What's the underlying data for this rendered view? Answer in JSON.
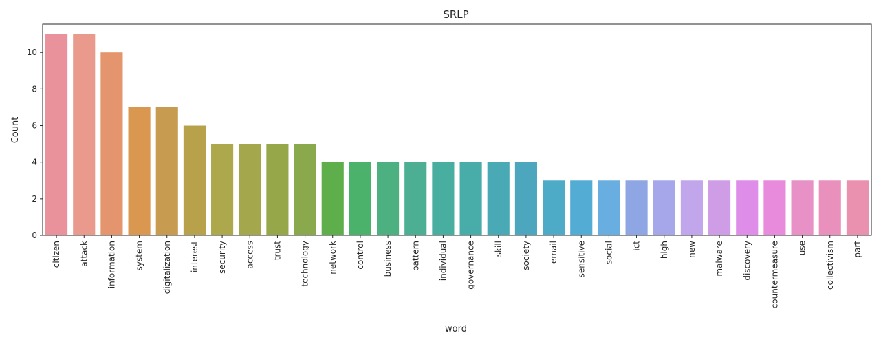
{
  "chart_data": {
    "type": "bar",
    "title": "SRLP",
    "xlabel": "word",
    "ylabel": "Count",
    "ylim": [
      0,
      11.55
    ],
    "yticks": [
      0,
      2,
      4,
      6,
      8,
      10
    ],
    "grid": false,
    "categories": [
      "citizen",
      "attack",
      "information",
      "system",
      "digitalization",
      "interest",
      "security",
      "access",
      "trust",
      "technology",
      "network",
      "control",
      "business",
      "pattern",
      "individual",
      "governance",
      "skill",
      "society",
      "email",
      "sensitive",
      "social",
      "ict",
      "high",
      "new",
      "malware",
      "discovery",
      "countermeasure",
      "use",
      "collectivism",
      "part"
    ],
    "values": [
      11,
      11,
      10,
      7,
      7,
      6,
      5,
      5,
      5,
      5,
      4,
      4,
      4,
      4,
      4,
      4,
      4,
      4,
      3,
      3,
      3,
      3,
      3,
      3,
      3,
      3,
      3,
      3,
      3,
      3
    ],
    "colors": [
      "#e9929b",
      "#e99a8c",
      "#e5956d",
      "#d99750",
      "#c79c50",
      "#b7a14b",
      "#aea84d",
      "#a4a74c",
      "#96a74a",
      "#8aa84c",
      "#5eaf4c",
      "#4ab26a",
      "#4cb081",
      "#4caf93",
      "#48ae9f",
      "#48aca8",
      "#49aab6",
      "#4ba6be",
      "#4eabc8",
      "#53acd4",
      "#69aee1",
      "#8ea6e4",
      "#a6a6eb",
      "#c2a6eb",
      "#cf9de6",
      "#de8de8",
      "#e88bdc",
      "#e791c6",
      "#e990bc",
      "#e991ae"
    ]
  }
}
